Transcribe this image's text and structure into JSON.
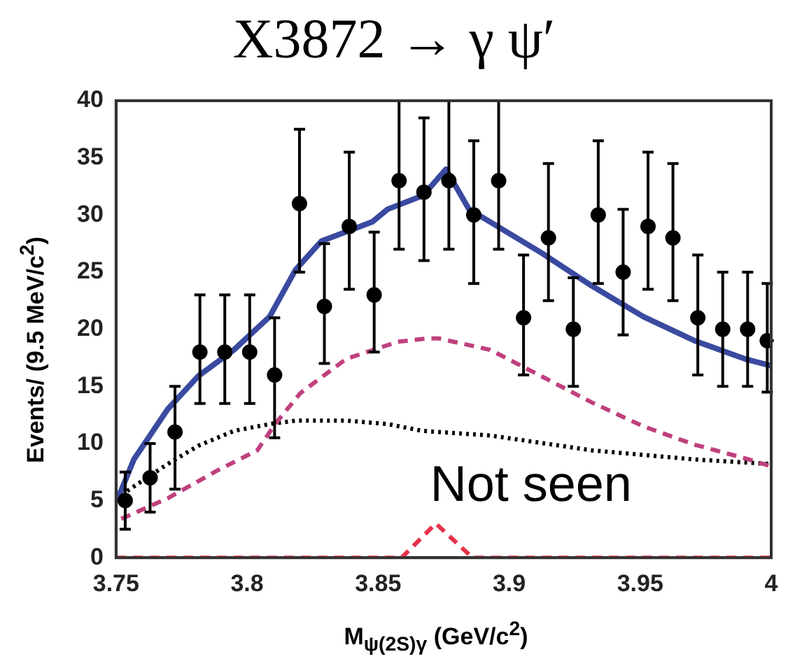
{
  "chart_data": {
    "type": "line",
    "title": "X3872 → γ ψ′",
    "xlabel": "M$_{ψ(2S)γ}$ (GeV/c$^{2}$)",
    "ylabel": "Events/ (9.5 MeV/c$^{2}$)",
    "xlim": [
      3.75,
      4
    ],
    "xticks": [
      3.75,
      3.8,
      3.85,
      3.9,
      3.95,
      4
    ],
    "ylim": [
      0,
      40
    ],
    "yticks": [
      0,
      5,
      10,
      15,
      20,
      25,
      30,
      35,
      40
    ],
    "grid": false,
    "legend": false,
    "annotations": [
      {
        "text": "Not seen",
        "x": 3.872,
        "y": 3
      }
    ],
    "series": [
      {
        "type": "scatter",
        "color": "#000000",
        "marker": "circle",
        "x": [
          3.7535,
          3.763,
          3.7725,
          3.782,
          3.7915,
          3.801,
          3.8105,
          3.82,
          3.8295,
          3.839,
          3.8485,
          3.858,
          3.8675,
          3.877,
          3.8865,
          3.896,
          3.9055,
          3.915,
          3.9245,
          3.934,
          3.9435,
          3.953,
          3.9625,
          3.972,
          3.9815,
          3.991,
          3.9985
        ],
        "values": [
          5,
          7,
          11,
          18,
          18,
          18,
          16,
          31,
          22,
          29,
          23,
          33,
          32,
          33,
          30,
          33,
          21,
          28,
          20,
          30,
          25,
          29,
          28,
          21,
          20,
          20,
          19
        ],
        "xerrors": [
          0.0025,
          0.0025,
          0.0025,
          0.0025,
          0.0025,
          0.0025,
          0.0025,
          0.0025,
          0.0025,
          0.0025,
          0.0025,
          0.0025,
          0.0025,
          0.0025,
          0.0025,
          0.0025,
          0.0025,
          0.0025,
          0.0025,
          0.0025,
          0.0025,
          0.0025,
          0.0025,
          0.0025,
          0.0025,
          0.0025,
          0.0025
        ],
        "errors": [
          [
            2.5,
            7.5
          ],
          [
            4,
            10
          ],
          [
            6,
            15
          ],
          [
            13.5,
            23
          ],
          [
            13.5,
            23
          ],
          [
            13.5,
            23
          ],
          [
            10.5,
            21
          ],
          [
            25,
            37.5
          ],
          [
            17,
            27.5
          ],
          [
            23.5,
            35.5
          ],
          [
            18,
            28.5
          ],
          [
            27,
            40
          ],
          [
            26,
            38.5
          ],
          [
            27,
            40
          ],
          [
            24,
            36.5
          ],
          [
            27,
            40
          ],
          [
            16,
            26.5
          ],
          [
            22.5,
            34.5
          ],
          [
            15,
            24.5
          ],
          [
            24,
            36.5
          ],
          [
            19.5,
            30.5
          ],
          [
            23.5,
            35.5
          ],
          [
            22.5,
            34.5
          ],
          [
            16,
            26.5
          ],
          [
            15,
            25
          ],
          [
            15,
            25
          ],
          [
            14.5,
            24
          ]
        ]
      },
      {
        "type": "line",
        "color": "#3a4aa0",
        "marker": "none",
        "line_style": "solid",
        "x": [
          3.75,
          3.752,
          3.7568,
          3.7697,
          3.7814,
          3.795,
          3.8086,
          3.8185,
          3.8283,
          3.8478,
          3.8536,
          3.8671,
          3.8759,
          3.8847,
          3.8927,
          3.9122,
          3.9315,
          3.9512,
          3.9707,
          3.99,
          4
        ],
        "values": [
          5,
          5.9,
          8.6,
          13,
          15.9,
          18.2,
          21.1,
          25.2,
          27.7,
          29.4,
          30.5,
          31.7,
          34,
          30.5,
          29.4,
          26.7,
          23.8,
          21.1,
          19,
          17.4,
          16.8
        ]
      },
      {
        "type": "line",
        "color": "#c0407e",
        "marker": "none",
        "line_style": "dashed",
        "x": [
          3.752,
          3.7697,
          3.7892,
          3.8039,
          3.8107,
          3.8203,
          3.8378,
          3.8575,
          3.8692,
          3.873,
          3.8927,
          3.9122,
          3.9315,
          3.9512,
          3.9707,
          3.99,
          4
        ],
        "values": [
          3.4,
          5.2,
          7.7,
          9.4,
          11.7,
          14.4,
          17.4,
          18.9,
          19.2,
          19.2,
          18.2,
          15.9,
          13.6,
          11.5,
          9.9,
          8.7,
          8
        ]
      },
      {
        "type": "line",
        "color": "#000000",
        "marker": "none",
        "line_style": "dotted",
        "x": [
          3.752,
          3.7697,
          3.7814,
          3.795,
          3.8086,
          3.8185,
          3.838,
          3.8536,
          3.867,
          3.8927,
          3.9315,
          3.9707,
          4
        ],
        "values": [
          5.5,
          8.2,
          9.8,
          11.1,
          11.7,
          12,
          12,
          11.7,
          11.1,
          10.7,
          9.4,
          8.6,
          8.2
        ]
      },
      {
        "type": "line",
        "color": "#e8304a",
        "marker": "none",
        "line_style": "dashed",
        "x": [
          3.75,
          3.859,
          3.872,
          3.886,
          4
        ],
        "values": [
          0,
          0,
          3,
          0,
          0
        ]
      }
    ]
  }
}
